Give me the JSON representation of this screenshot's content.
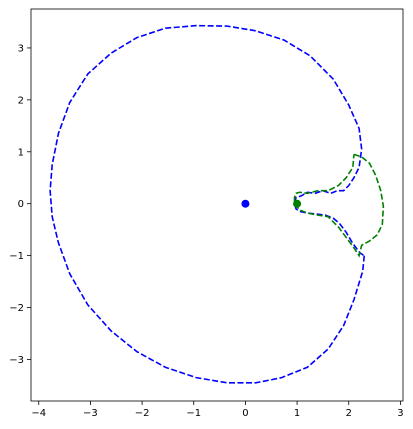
{
  "chart_data": {
    "type": "scatter",
    "title": "",
    "xlabel": "",
    "ylabel": "",
    "xlim": [
      -4.15,
      3.05
    ],
    "ylim": [
      -3.8,
      3.75
    ],
    "grid": false,
    "legend": "none",
    "xticks": [
      -4,
      -3,
      -2,
      -1,
      0,
      1,
      2,
      3
    ],
    "yticks": [
      -3,
      -2,
      -1,
      0,
      1,
      2,
      3
    ],
    "xtick_labels": [
      "−4",
      "−3",
      "−2",
      "−1",
      "0",
      "1",
      "2",
      "3"
    ],
    "ytick_labels": [
      "−3",
      "−2",
      "−1",
      "0",
      "1",
      "2",
      "3"
    ],
    "series": [
      {
        "kind": "dashed-line",
        "color": "#0000ff",
        "x": [
          2.3,
          2.27,
          2.1,
          1.9,
          1.6,
          1.2,
          0.7,
          0.2,
          -0.35,
          -0.95,
          -1.55,
          -2.1,
          -2.6,
          -3.05,
          -3.4,
          -3.62,
          -3.74,
          -3.78,
          -3.74,
          -3.62,
          -3.4,
          -3.05,
          -2.6,
          -2.1,
          -1.55,
          -0.95,
          -0.35,
          0.2,
          0.75,
          1.25,
          1.7,
          2.0,
          2.2,
          2.25,
          2.2,
          2.1,
          2.0,
          1.9,
          1.78,
          1.65,
          1.5,
          1.35,
          1.2,
          1.08,
          0.98,
          0.95,
          0.98,
          1.05,
          1.2,
          1.38,
          1.55,
          1.7,
          1.82,
          1.95,
          2.05,
          2.12,
          2.22,
          2.3
        ],
        "y": [
          -1.0,
          -1.3,
          -1.85,
          -2.35,
          -2.8,
          -3.15,
          -3.35,
          -3.45,
          -3.45,
          -3.35,
          -3.15,
          -2.85,
          -2.45,
          -1.95,
          -1.35,
          -0.75,
          -0.25,
          0.25,
          0.75,
          1.35,
          1.95,
          2.5,
          2.9,
          3.2,
          3.38,
          3.43,
          3.42,
          3.33,
          3.15,
          2.85,
          2.4,
          1.9,
          1.45,
          1.05,
          0.7,
          0.5,
          0.35,
          0.25,
          0.25,
          0.2,
          0.25,
          0.2,
          0.22,
          0.15,
          0.12,
          0.0,
          -0.1,
          -0.15,
          -0.18,
          -0.2,
          -0.22,
          -0.28,
          -0.38,
          -0.55,
          -0.72,
          -0.82,
          -0.95,
          -1.0
        ]
      },
      {
        "kind": "dashed-line",
        "color": "#008000",
        "x": [
          2.1,
          2.1,
          2.25,
          2.4,
          2.52,
          2.62,
          2.67,
          2.65,
          2.55,
          2.4,
          2.25,
          2.2,
          2.08,
          1.95,
          1.8,
          1.6,
          1.4,
          1.2,
          1.05,
          0.95,
          0.95,
          0.98,
          1.05,
          1.2,
          1.4,
          1.6,
          1.8,
          1.95,
          2.08,
          2.1
        ],
        "y": [
          0.95,
          0.95,
          0.9,
          0.78,
          0.55,
          0.25,
          -0.05,
          -0.4,
          -0.6,
          -0.72,
          -0.8,
          -1.0,
          -0.82,
          -0.65,
          -0.45,
          -0.25,
          -0.22,
          -0.18,
          -0.12,
          0.0,
          0.12,
          0.2,
          0.22,
          0.2,
          0.25,
          0.25,
          0.35,
          0.5,
          0.7,
          0.95
        ]
      },
      {
        "kind": "point",
        "color": "#0000ff",
        "x": [
          0.0
        ],
        "y": [
          0.0
        ]
      },
      {
        "kind": "point",
        "color": "#008000",
        "x": [
          1.0
        ],
        "y": [
          0.0
        ]
      }
    ]
  }
}
